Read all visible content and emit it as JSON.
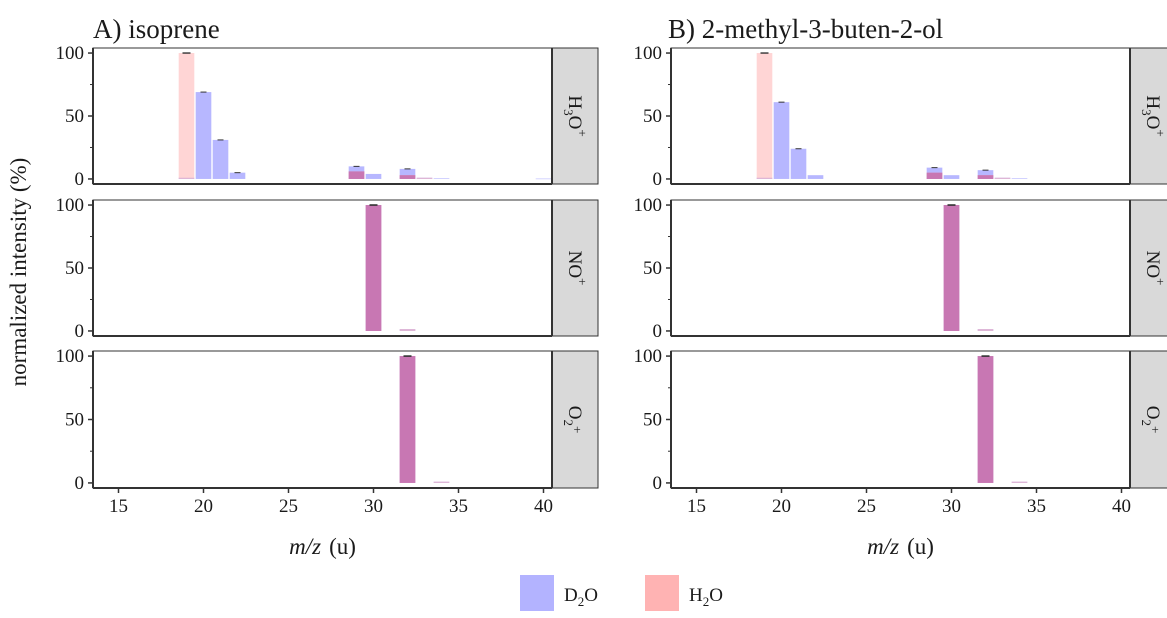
{
  "chart_data": [
    {
      "type": "bar",
      "title": "A) isoprene",
      "xlabel_italic": "m/z",
      "xlabel_unit": "(u)",
      "ylabel": "normalized intensity (%)",
      "xlim": [
        13.5,
        40.5
      ],
      "ylim": [
        -4,
        104
      ],
      "xticks": [
        15,
        20,
        25,
        30,
        35,
        40
      ],
      "yticks": [
        0,
        50,
        100
      ],
      "facets": [
        {
          "reagent": "H3O+",
          "series": [
            {
              "name": "D2O",
              "color": "#b3b3ff",
              "x": [
                19,
                20,
                21,
                22,
                29,
                30,
                32,
                33,
                34,
                40
              ],
              "values": [
                1,
                69,
                31,
                5,
                10,
                4,
                8,
                1,
                0.5,
                0.3
              ]
            },
            {
              "name": "H2O",
              "color": "#ffb3b3",
              "x": [
                19,
                29,
                32,
                33
              ],
              "values": [
                100,
                6,
                3,
                1
              ]
            }
          ]
        },
        {
          "reagent": "NO+",
          "series": [
            {
              "name": "D2O",
              "color": "#b3b3ff",
              "x": [
                30,
                32
              ],
              "values": [
                100,
                1.5
              ]
            },
            {
              "name": "H2O",
              "color": "#ffb3b3",
              "x": [
                30,
                32
              ],
              "values": [
                100,
                1.5
              ]
            }
          ]
        },
        {
          "reagent": "O2+",
          "series": [
            {
              "name": "D2O",
              "color": "#b3b3ff",
              "x": [
                32,
                34
              ],
              "values": [
                100,
                1
              ]
            },
            {
              "name": "H2O",
              "color": "#ffb3b3",
              "x": [
                32,
                34
              ],
              "values": [
                100,
                1
              ]
            }
          ]
        }
      ]
    },
    {
      "type": "bar",
      "title": "B) 2-methyl-3-buten-2-ol",
      "xlabel_italic": "m/z",
      "xlabel_unit": "(u)",
      "xlim": [
        13.5,
        40.5
      ],
      "ylim": [
        -4,
        104
      ],
      "xticks": [
        15,
        20,
        25,
        30,
        35,
        40
      ],
      "yticks": [
        0,
        50,
        100
      ],
      "facets": [
        {
          "reagent": "H3O+",
          "series": [
            {
              "name": "D2O",
              "color": "#b3b3ff",
              "x": [
                19,
                20,
                21,
                22,
                29,
                30,
                32,
                33,
                34
              ],
              "values": [
                1,
                61,
                24,
                3,
                9,
                3,
                7,
                1,
                0.5
              ]
            },
            {
              "name": "H2O",
              "color": "#ffb3b3",
              "x": [
                19,
                29,
                32,
                33
              ],
              "values": [
                100,
                5,
                3,
                1
              ]
            }
          ]
        },
        {
          "reagent": "NO+",
          "series": [
            {
              "name": "D2O",
              "color": "#b3b3ff",
              "x": [
                30,
                32
              ],
              "values": [
                100,
                1.5
              ]
            },
            {
              "name": "H2O",
              "color": "#ffb3b3",
              "x": [
                30,
                32
              ],
              "values": [
                100,
                1.5
              ]
            }
          ]
        },
        {
          "reagent": "O2+",
          "series": [
            {
              "name": "D2O",
              "color": "#b3b3ff",
              "x": [
                32,
                34
              ],
              "values": [
                100,
                1
              ]
            },
            {
              "name": "H2O",
              "color": "#ffb3b3",
              "x": [
                32,
                34
              ],
              "values": [
                100,
                1
              ]
            }
          ]
        }
      ]
    }
  ],
  "legend": {
    "position": "bottom",
    "items": [
      {
        "label": "D",
        "sub": "2",
        "rest": "O",
        "color": "#b3b3ff"
      },
      {
        "label": "H",
        "sub": "2",
        "rest": "O",
        "color": "#ffb3b3"
      }
    ]
  },
  "strip_labels": [
    {
      "main": "H",
      "sub": "3",
      "rest": "O",
      "sup": "+"
    },
    {
      "main": "NO",
      "sub": "",
      "rest": "",
      "sup": "+"
    },
    {
      "main": "O",
      "sub": "2",
      "rest": "",
      "sup": "+"
    }
  ],
  "colors": {
    "d2o": "#b3b3ff",
    "h2o": "#ffb3b3",
    "overlap": "#c877b3",
    "strip": "#d9d9d9",
    "errorbar": "#333333"
  }
}
